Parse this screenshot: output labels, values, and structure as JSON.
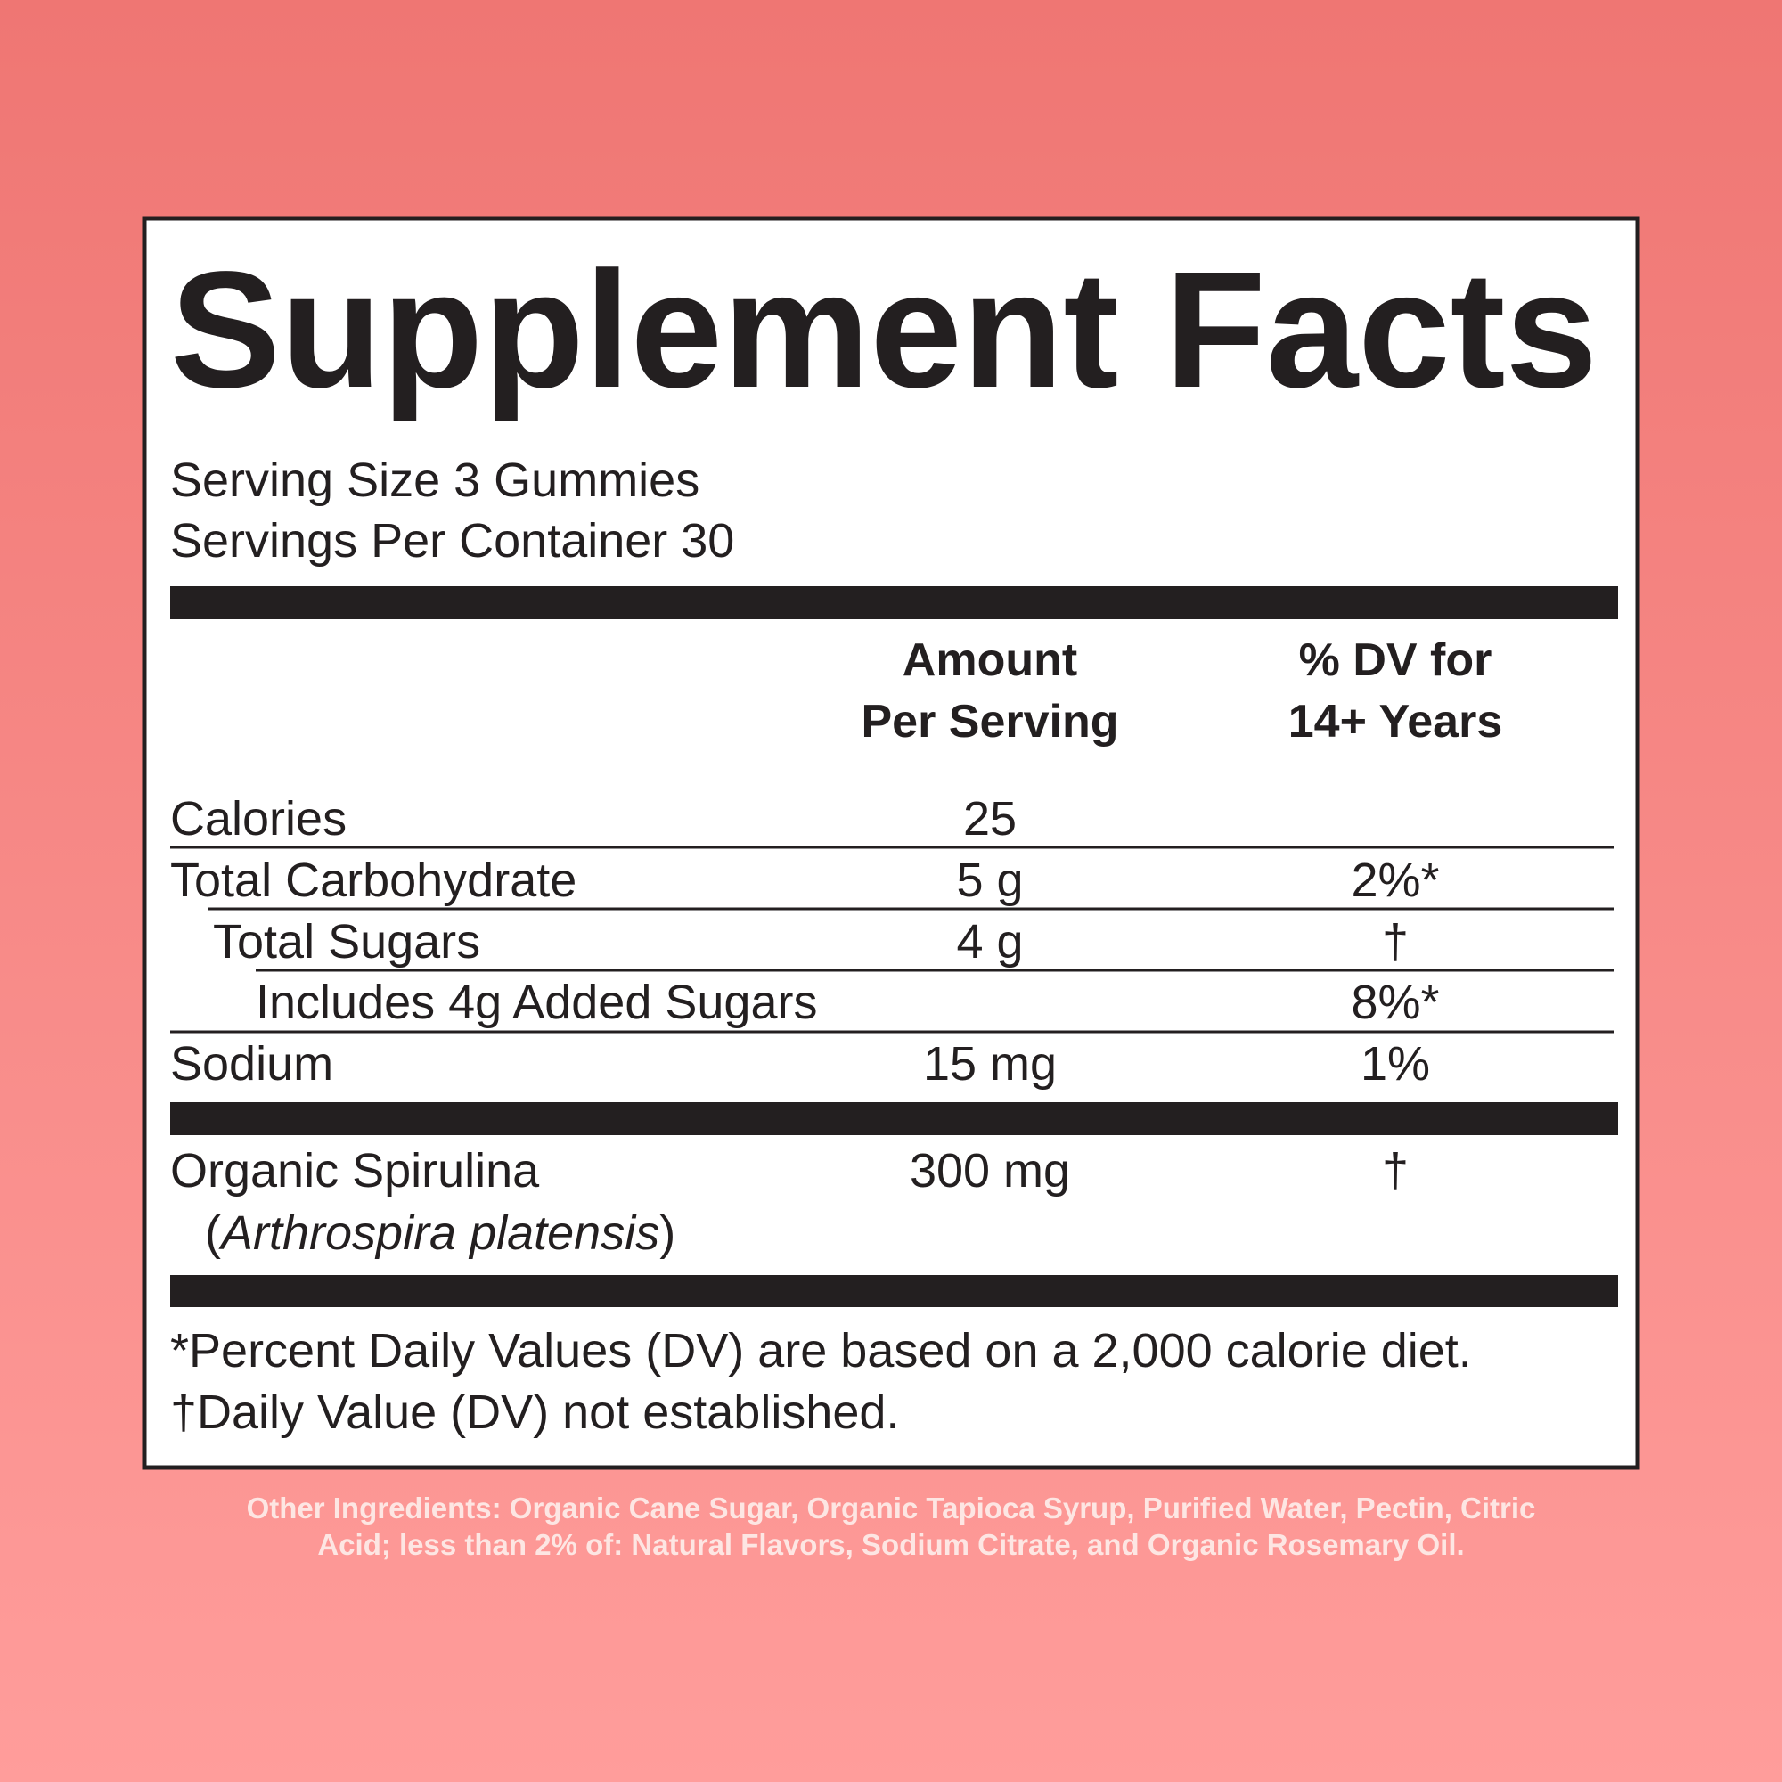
{
  "header": {
    "title": "Supplement Facts",
    "serving_size": "Serving Size 3 Gummies",
    "servings_per_container": "Servings Per Container 30"
  },
  "columns": {
    "amount": [
      "Amount",
      "Per Serving"
    ],
    "dv": [
      "% DV for",
      "14+ Years"
    ]
  },
  "table": {
    "rows": [
      {
        "label": "Calories",
        "amount": "25"
      },
      {
        "label": "Total Carbohydrate",
        "amount": "5 g",
        "dv": "2%*"
      },
      {
        "label": "Total Sugars",
        "amount": "4 g",
        "dv": "†"
      },
      {
        "label": "Includes 4g Added Sugars",
        "dv": "8%*"
      },
      {
        "label": "Sodium",
        "amount": "15 mg",
        "dv": "1%"
      }
    ]
  },
  "ingredients": [
    {
      "label": "Organic Spirulina",
      "latin_name_parts": [
        "(",
        "Arthrospira platensis",
        ")"
      ],
      "amount": "300 mg",
      "dv": "†"
    }
  ],
  "footnotes": [
    "*Percent Daily Values (DV) are based on a 2,000 calorie diet.",
    "†Daily Value (DV) not established."
  ],
  "other_ingredients": [
    "Other Ingredients: Organic Cane Sugar, Organic Tapioca Syrup, Purified Water, Pectin, Citric",
    "Acid; less than 2% of: Natural Flavors, Sodium Citrate, and Organic Rosemary Oil."
  ]
}
